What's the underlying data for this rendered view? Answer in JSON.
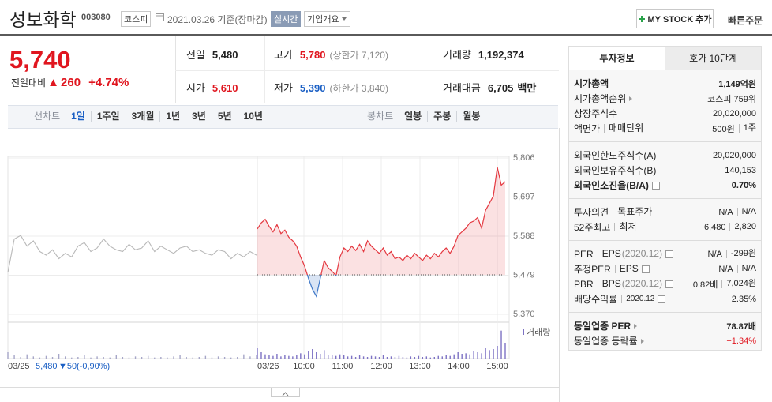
{
  "header": {
    "name": "성보화학",
    "code": "003080",
    "market": "코스피",
    "date": "2021.03.26 기준(장마감)",
    "realtime": "실시간",
    "company_menu": "기업개요",
    "mystock": "MY STOCK 추가",
    "quick_order": "빠른주문"
  },
  "quote": {
    "price": "5,740",
    "change_title": "전일대비",
    "change_arrow": "▲",
    "change": "260",
    "change_pct": "+4.74%",
    "fields": [
      {
        "label": "전일",
        "value": "5,480",
        "color": "#222222"
      },
      {
        "label": "고가",
        "value": "5,780",
        "color": "#e0161f",
        "extra": "(상한가 7,120)"
      },
      {
        "label": "거래량",
        "value": "1,192,374",
        "color": "#222222"
      },
      {
        "label": "시가",
        "value": "5,610",
        "color": "#e0161f"
      },
      {
        "label": "저가",
        "value": "5,390",
        "color": "#1a5fc4",
        "extra": "(하한가 3,840)"
      },
      {
        "label": "거래대금",
        "value": "6,705",
        "color": "#222222",
        "unit": "백만"
      }
    ]
  },
  "chart_tabs": {
    "line_label": "선차트",
    "line_periods": [
      "1일",
      "1주일",
      "3개월",
      "1년",
      "3년",
      "5년",
      "10년"
    ],
    "candle_label": "봉차트",
    "candle_periods": [
      "일봉",
      "주봉",
      "월봉"
    ]
  },
  "chart_data": {
    "type": "line",
    "ylim": [
      5370,
      5806
    ],
    "yticks": [
      {
        "value": 5806,
        "label": "5,806"
      },
      {
        "value": 5697,
        "label": "5,697"
      },
      {
        "value": 5588,
        "label": "5,588"
      },
      {
        "value": 5479,
        "label": "5,479"
      },
      {
        "value": 5370,
        "label": "5,370"
      }
    ],
    "xlim": [
      540,
      930
    ],
    "xticks": [
      {
        "value": 600,
        "label": "10:00"
      },
      {
        "value": 660,
        "label": "11:00"
      },
      {
        "value": 720,
        "label": "12:00"
      },
      {
        "value": 780,
        "label": "13:00"
      },
      {
        "value": 840,
        "label": "14:00"
      },
      {
        "value": 900,
        "label": "15:00"
      }
    ],
    "days": [
      "03/25",
      "03/26"
    ],
    "baseline": 5480,
    "grid": true,
    "below_color": "#3f78c8",
    "series": [
      {
        "color": "#b8b8b8",
        "values": [
          5487,
          5580,
          5590,
          5560,
          5575,
          5545,
          5535,
          5550,
          5525,
          5540,
          5530,
          5560,
          5570,
          5545,
          5555,
          5580,
          5560,
          5550,
          5545,
          5565,
          5550,
          5555,
          5575,
          5545,
          5560,
          5550,
          5540,
          5555,
          5560,
          5545,
          5550,
          5540,
          5535,
          5550,
          5545,
          5525,
          5540,
          5530,
          5545,
          5535
        ]
      },
      {
        "color": "#e4373f",
        "values": [
          5608,
          5625,
          5635,
          5615,
          5600,
          5620,
          5595,
          5605,
          5585,
          5575,
          5560,
          5530,
          5505,
          5470,
          5440,
          5420,
          5470,
          5520,
          5500,
          5490,
          5478,
          5530,
          5555,
          5545,
          5560,
          5548,
          5565,
          5545,
          5575,
          5560,
          5550,
          5540,
          5555,
          5535,
          5545,
          5525,
          5530,
          5520,
          5535,
          5525,
          5540,
          5530,
          5520,
          5535,
          5525,
          5540,
          5530,
          5545,
          5555,
          5540,
          5560,
          5590,
          5600,
          5610,
          5625,
          5630,
          5640,
          5610,
          5660,
          5680,
          5700,
          5780,
          5730,
          5740
        ]
      }
    ],
    "volume": {
      "name": "거래량",
      "ylim": [
        0,
        60000
      ],
      "series": [
        {
          "color": "#a6a6c8",
          "values": [
            12000,
            6000,
            3000,
            8000,
            4000,
            2000,
            5000,
            3000,
            9000,
            4000,
            2000,
            3000,
            6000,
            2000,
            4000,
            3000,
            2000,
            7000,
            3000,
            2000,
            4000,
            3000,
            5000,
            2000,
            3000,
            2000,
            4000,
            6000,
            3000,
            2000,
            3000,
            5000,
            2000,
            4000,
            3000,
            2000,
            3000,
            8000,
            4000,
            6000
          ]
        },
        {
          "color": "#7d72c4",
          "values": [
            20000,
            12000,
            8000,
            6000,
            5000,
            9000,
            4000,
            6000,
            5000,
            4000,
            7000,
            10000,
            8000,
            14000,
            18000,
            12000,
            9000,
            16000,
            7000,
            6000,
            5000,
            8000,
            6000,
            4000,
            5000,
            3000,
            6000,
            4000,
            3000,
            5000,
            4000,
            3000,
            6000,
            3000,
            4000,
            3000,
            5000,
            3000,
            2000,
            4000,
            3000,
            5000,
            3000,
            4000,
            2000,
            3000,
            5000,
            4000,
            6000,
            5000,
            8000,
            12000,
            9000,
            10000,
            8000,
            14000,
            12000,
            10000,
            20000,
            16000,
            18000,
            24000,
            53000,
            30000
          ]
        }
      ]
    },
    "prev_summary": {
      "close": "5,480",
      "change": "▼50",
      "pct": "(-0,90%)"
    }
  },
  "info_panel": {
    "tabs": [
      "투자정보",
      "호가 10단계"
    ],
    "sections": [
      [
        {
          "labels": [
            "시가총액"
          ],
          "values": [
            "1,149억원"
          ],
          "bold": true
        },
        {
          "labels": [
            "시가총액순위"
          ],
          "values": [
            "코스피 759위"
          ],
          "more": true
        },
        {
          "labels": [
            "상장주식수"
          ],
          "values": [
            "20,020,000"
          ]
        },
        {
          "labels": [
            "액면가",
            "매매단위"
          ],
          "values": [
            "500원",
            "1주"
          ]
        }
      ],
      [
        {
          "labels": [
            "외국인한도주식수(A)"
          ],
          "values": [
            "20,020,000"
          ]
        },
        {
          "labels": [
            "외국인보유주식수(B)"
          ],
          "values": [
            "140,153"
          ]
        },
        {
          "labels": [
            "외국인소진율(B/A)"
          ],
          "values": [
            "0.70%"
          ],
          "bold": true,
          "help": true
        }
      ],
      [
        {
          "labels": [
            "투자의견",
            "목표주가"
          ],
          "values": [
            "N/A",
            "N/A"
          ]
        },
        {
          "labels": [
            "52주최고",
            "최저"
          ],
          "values": [
            "6,480",
            "2,820"
          ]
        }
      ],
      [
        {
          "labels": [
            "PER",
            "EPS"
          ],
          "note": "(2020.12)",
          "values": [
            "N/A",
            "-299원"
          ],
          "help": true
        },
        {
          "labels": [
            "추정PER",
            "EPS"
          ],
          "values": [
            "N/A",
            "N/A"
          ],
          "help": true
        },
        {
          "labels": [
            "PBR",
            "BPS"
          ],
          "note": "(2020.12)",
          "values": [
            "0.82배",
            "7,024원"
          ],
          "help": true
        },
        {
          "labels": [
            "배당수익률",
            "2020.12"
          ],
          "values": [
            "2.35%"
          ],
          "help": true
        }
      ],
      [
        {
          "labels": [
            "동일업종 PER"
          ],
          "values": [
            "78.87배"
          ],
          "bold": true,
          "more": true
        },
        {
          "labels": [
            "동일업종 등락률"
          ],
          "values": [
            "+1.34%"
          ],
          "more": true,
          "color": "#e0161f"
        }
      ]
    ]
  }
}
